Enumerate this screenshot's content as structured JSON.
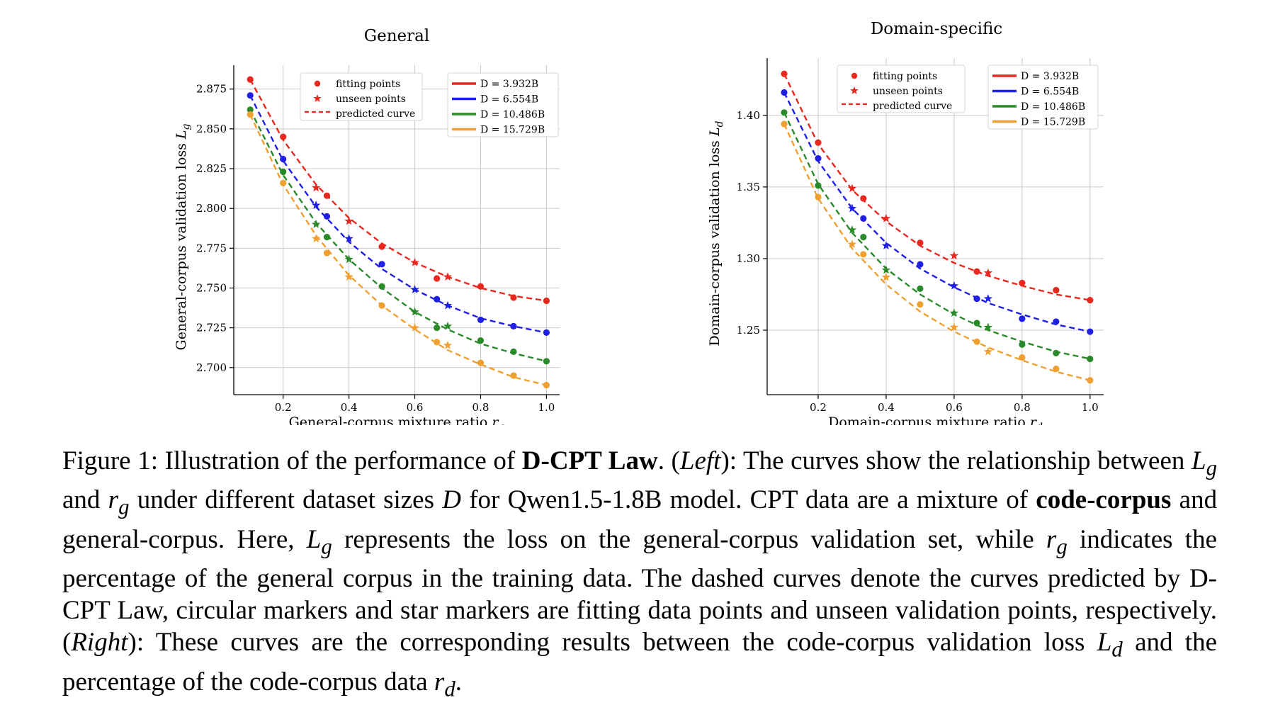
{
  "chart_data": [
    {
      "type": "scatter",
      "title": "General",
      "xlabel": "General-corpus mixture ratio",
      "xlabel_symbol": "r_g",
      "ylabel": "General-corpus validation loss",
      "ylabel_symbol": "L_g",
      "xlim": [
        0.05,
        1.04
      ],
      "ylim": [
        2.683,
        2.89
      ],
      "xticks": [
        "0.2",
        "0.4",
        "0.6",
        "0.8",
        "1.0"
      ],
      "xtick_values": [
        0.2,
        0.4,
        0.6,
        0.8,
        1.0
      ],
      "yticks": [
        "2.875",
        "2.850",
        "2.825",
        "2.800",
        "2.775",
        "2.750",
        "2.725",
        "2.700"
      ],
      "ytick_values": [
        2.875,
        2.85,
        2.825,
        2.8,
        2.775,
        2.75,
        2.725,
        2.7
      ],
      "grid": true,
      "marker_legend": [
        "fitting points",
        "unseen points",
        "predicted curve"
      ],
      "series": [
        {
          "name": "D = 3.932B",
          "color": "#e8281e",
          "fit": [
            [
              0.1,
              2.881
            ],
            [
              0.2,
              2.845
            ],
            [
              0.333,
              2.808
            ],
            [
              0.5,
              2.776
            ],
            [
              0.667,
              2.756
            ],
            [
              0.8,
              2.751
            ],
            [
              0.9,
              2.744
            ],
            [
              1.0,
              2.742
            ]
          ],
          "unseen": [
            [
              0.3,
              2.813
            ],
            [
              0.4,
              2.792
            ],
            [
              0.6,
              2.766
            ],
            [
              0.7,
              2.757
            ]
          ],
          "curve": [
            [
              0.1,
              2.881
            ],
            [
              0.2,
              2.843
            ],
            [
              0.3,
              2.815
            ],
            [
              0.4,
              2.794
            ],
            [
              0.5,
              2.778
            ],
            [
              0.6,
              2.766
            ],
            [
              0.7,
              2.757
            ],
            [
              0.8,
              2.75
            ],
            [
              0.9,
              2.745
            ],
            [
              1.0,
              2.742
            ]
          ]
        },
        {
          "name": "D = 6.554B",
          "color": "#1f1fe6",
          "fit": [
            [
              0.1,
              2.871
            ],
            [
              0.2,
              2.831
            ],
            [
              0.333,
              2.795
            ],
            [
              0.5,
              2.765
            ],
            [
              0.667,
              2.743
            ],
            [
              0.8,
              2.73
            ],
            [
              0.9,
              2.726
            ],
            [
              1.0,
              2.722
            ]
          ],
          "unseen": [
            [
              0.3,
              2.802
            ],
            [
              0.4,
              2.781
            ],
            [
              0.6,
              2.749
            ],
            [
              0.7,
              2.739
            ]
          ],
          "curve": [
            [
              0.1,
              2.871
            ],
            [
              0.2,
              2.83
            ],
            [
              0.3,
              2.801
            ],
            [
              0.4,
              2.779
            ],
            [
              0.5,
              2.762
            ],
            [
              0.6,
              2.749
            ],
            [
              0.7,
              2.739
            ],
            [
              0.8,
              2.731
            ],
            [
              0.9,
              2.726
            ],
            [
              1.0,
              2.722
            ]
          ]
        },
        {
          "name": "D = 10.486B",
          "color": "#2a8a2a",
          "fit": [
            [
              0.1,
              2.862
            ],
            [
              0.2,
              2.823
            ],
            [
              0.333,
              2.782
            ],
            [
              0.5,
              2.751
            ],
            [
              0.667,
              2.725
            ],
            [
              0.8,
              2.717
            ],
            [
              0.9,
              2.71
            ],
            [
              1.0,
              2.704
            ]
          ],
          "unseen": [
            [
              0.3,
              2.79
            ],
            [
              0.4,
              2.768
            ],
            [
              0.6,
              2.735
            ],
            [
              0.7,
              2.726
            ]
          ],
          "curve": [
            [
              0.1,
              2.862
            ],
            [
              0.2,
              2.821
            ],
            [
              0.3,
              2.791
            ],
            [
              0.4,
              2.768
            ],
            [
              0.5,
              2.75
            ],
            [
              0.6,
              2.735
            ],
            [
              0.7,
              2.724
            ],
            [
              0.8,
              2.715
            ],
            [
              0.9,
              2.709
            ],
            [
              1.0,
              2.704
            ]
          ]
        },
        {
          "name": "D = 15.729B",
          "color": "#f0a030",
          "fit": [
            [
              0.1,
              2.859
            ],
            [
              0.2,
              2.816
            ],
            [
              0.333,
              2.772
            ],
            [
              0.5,
              2.739
            ],
            [
              0.667,
              2.716
            ],
            [
              0.8,
              2.703
            ],
            [
              0.9,
              2.695
            ],
            [
              1.0,
              2.689
            ]
          ],
          "unseen": [
            [
              0.3,
              2.781
            ],
            [
              0.4,
              2.757
            ],
            [
              0.6,
              2.725
            ],
            [
              0.7,
              2.714
            ]
          ],
          "curve": [
            [
              0.1,
              2.859
            ],
            [
              0.2,
              2.815
            ],
            [
              0.3,
              2.783
            ],
            [
              0.4,
              2.758
            ],
            [
              0.5,
              2.739
            ],
            [
              0.6,
              2.724
            ],
            [
              0.7,
              2.711
            ],
            [
              0.8,
              2.702
            ],
            [
              0.9,
              2.694
            ],
            [
              1.0,
              2.689
            ]
          ]
        }
      ]
    },
    {
      "type": "scatter",
      "title": "Domain-specific",
      "xlabel": "Domain-corpus mixture ratio",
      "xlabel_symbol": "r_d",
      "ylabel": "Domain-corpus validation loss",
      "ylabel_symbol": "L_d",
      "xlim": [
        0.05,
        1.04
      ],
      "ylim": [
        1.205,
        1.44
      ],
      "xticks": [
        "0.2",
        "0.4",
        "0.6",
        "0.8",
        "1.0"
      ],
      "xtick_values": [
        0.2,
        0.4,
        0.6,
        0.8,
        1.0
      ],
      "yticks": [
        "1.40",
        "1.35",
        "1.30",
        "1.25"
      ],
      "ytick_values": [
        1.4,
        1.35,
        1.3,
        1.25
      ],
      "grid": true,
      "marker_legend": [
        "fitting points",
        "unseen points",
        "predicted curve"
      ],
      "series": [
        {
          "name": "D = 3.932B",
          "color": "#e8281e",
          "fit": [
            [
              0.1,
              1.429
            ],
            [
              0.2,
              1.381
            ],
            [
              0.333,
              1.342
            ],
            [
              0.5,
              1.311
            ],
            [
              0.667,
              1.291
            ],
            [
              0.8,
              1.283
            ],
            [
              0.9,
              1.278
            ],
            [
              1.0,
              1.271
            ]
          ],
          "unseen": [
            [
              0.3,
              1.349
            ],
            [
              0.4,
              1.328
            ],
            [
              0.6,
              1.302
            ],
            [
              0.7,
              1.29
            ]
          ],
          "curve": [
            [
              0.1,
              1.429
            ],
            [
              0.2,
              1.38
            ],
            [
              0.3,
              1.348
            ],
            [
              0.4,
              1.326
            ],
            [
              0.5,
              1.309
            ],
            [
              0.6,
              1.297
            ],
            [
              0.7,
              1.288
            ],
            [
              0.8,
              1.281
            ],
            [
              0.9,
              1.275
            ],
            [
              1.0,
              1.271
            ]
          ]
        },
        {
          "name": "D = 6.554B",
          "color": "#1f1fe6",
          "fit": [
            [
              0.1,
              1.416
            ],
            [
              0.2,
              1.37
            ],
            [
              0.333,
              1.328
            ],
            [
              0.5,
              1.296
            ],
            [
              0.667,
              1.272
            ],
            [
              0.8,
              1.258
            ],
            [
              0.9,
              1.256
            ],
            [
              1.0,
              1.249
            ]
          ],
          "unseen": [
            [
              0.3,
              1.335
            ],
            [
              0.4,
              1.309
            ],
            [
              0.6,
              1.281
            ],
            [
              0.7,
              1.272
            ]
          ],
          "curve": [
            [
              0.1,
              1.416
            ],
            [
              0.2,
              1.368
            ],
            [
              0.3,
              1.335
            ],
            [
              0.4,
              1.311
            ],
            [
              0.5,
              1.293
            ],
            [
              0.6,
              1.28
            ],
            [
              0.7,
              1.269
            ],
            [
              0.8,
              1.261
            ],
            [
              0.9,
              1.254
            ],
            [
              1.0,
              1.249
            ]
          ]
        },
        {
          "name": "D = 10.486B",
          "color": "#2a8a2a",
          "fit": [
            [
              0.1,
              1.402
            ],
            [
              0.2,
              1.351
            ],
            [
              0.333,
              1.315
            ],
            [
              0.5,
              1.279
            ],
            [
              0.667,
              1.255
            ],
            [
              0.8,
              1.24
            ],
            [
              0.9,
              1.234
            ],
            [
              1.0,
              1.23
            ]
          ],
          "unseen": [
            [
              0.3,
              1.32
            ],
            [
              0.4,
              1.292
            ],
            [
              0.6,
              1.262
            ],
            [
              0.7,
              1.252
            ]
          ],
          "curve": [
            [
              0.1,
              1.402
            ],
            [
              0.2,
              1.352
            ],
            [
              0.3,
              1.318
            ],
            [
              0.4,
              1.293
            ],
            [
              0.5,
              1.275
            ],
            [
              0.6,
              1.261
            ],
            [
              0.7,
              1.25
            ],
            [
              0.8,
              1.242
            ],
            [
              0.9,
              1.235
            ],
            [
              1.0,
              1.23
            ]
          ]
        },
        {
          "name": "D = 15.729B",
          "color": "#f0a030",
          "fit": [
            [
              0.1,
              1.394
            ],
            [
              0.2,
              1.343
            ],
            [
              0.333,
              1.303
            ],
            [
              0.5,
              1.268
            ],
            [
              0.667,
              1.242
            ],
            [
              0.8,
              1.231
            ],
            [
              0.9,
              1.223
            ],
            [
              1.0,
              1.215
            ]
          ],
          "unseen": [
            [
              0.3,
              1.31
            ],
            [
              0.4,
              1.287
            ],
            [
              0.6,
              1.252
            ],
            [
              0.7,
              1.235
            ]
          ],
          "curve": [
            [
              0.1,
              1.394
            ],
            [
              0.2,
              1.342
            ],
            [
              0.3,
              1.307
            ],
            [
              0.4,
              1.282
            ],
            [
              0.5,
              1.263
            ],
            [
              0.6,
              1.249
            ],
            [
              0.7,
              1.238
            ],
            [
              0.8,
              1.229
            ],
            [
              0.9,
              1.221
            ],
            [
              1.0,
              1.215
            ]
          ]
        }
      ]
    }
  ],
  "caption": {
    "figure_label": "Figure 1:",
    "t1": "Illustration of the performance of",
    "law_name": "D-CPT Law",
    "t2": ". (",
    "left": "Left",
    "t3": "): The curves show the relationship between",
    "Lg": "L",
    "sub_g": "g",
    "and": "and",
    "rg": "r",
    "t4": "under different dataset sizes",
    "D": "D",
    "t5": "for Qwen1.5-1.8B model. CPT data are a mixture of",
    "code_corpus": "code-corpus",
    "t6": "and general-corpus. Here,",
    "t7": "represents the loss on the general-corpus validation set, while",
    "t8": "indicates the percentage of the general corpus in the training data. The dashed curves denote the curves predicted by D-CPT Law, circular markers and star markers are fitting data points and unseen validation points, respectively. (",
    "right": "Right",
    "t9": "): These curves are the corresponding results between the code-corpus validation loss",
    "sub_d": "d",
    "t10": "and the percentage of the code-corpus data",
    "end": "."
  }
}
